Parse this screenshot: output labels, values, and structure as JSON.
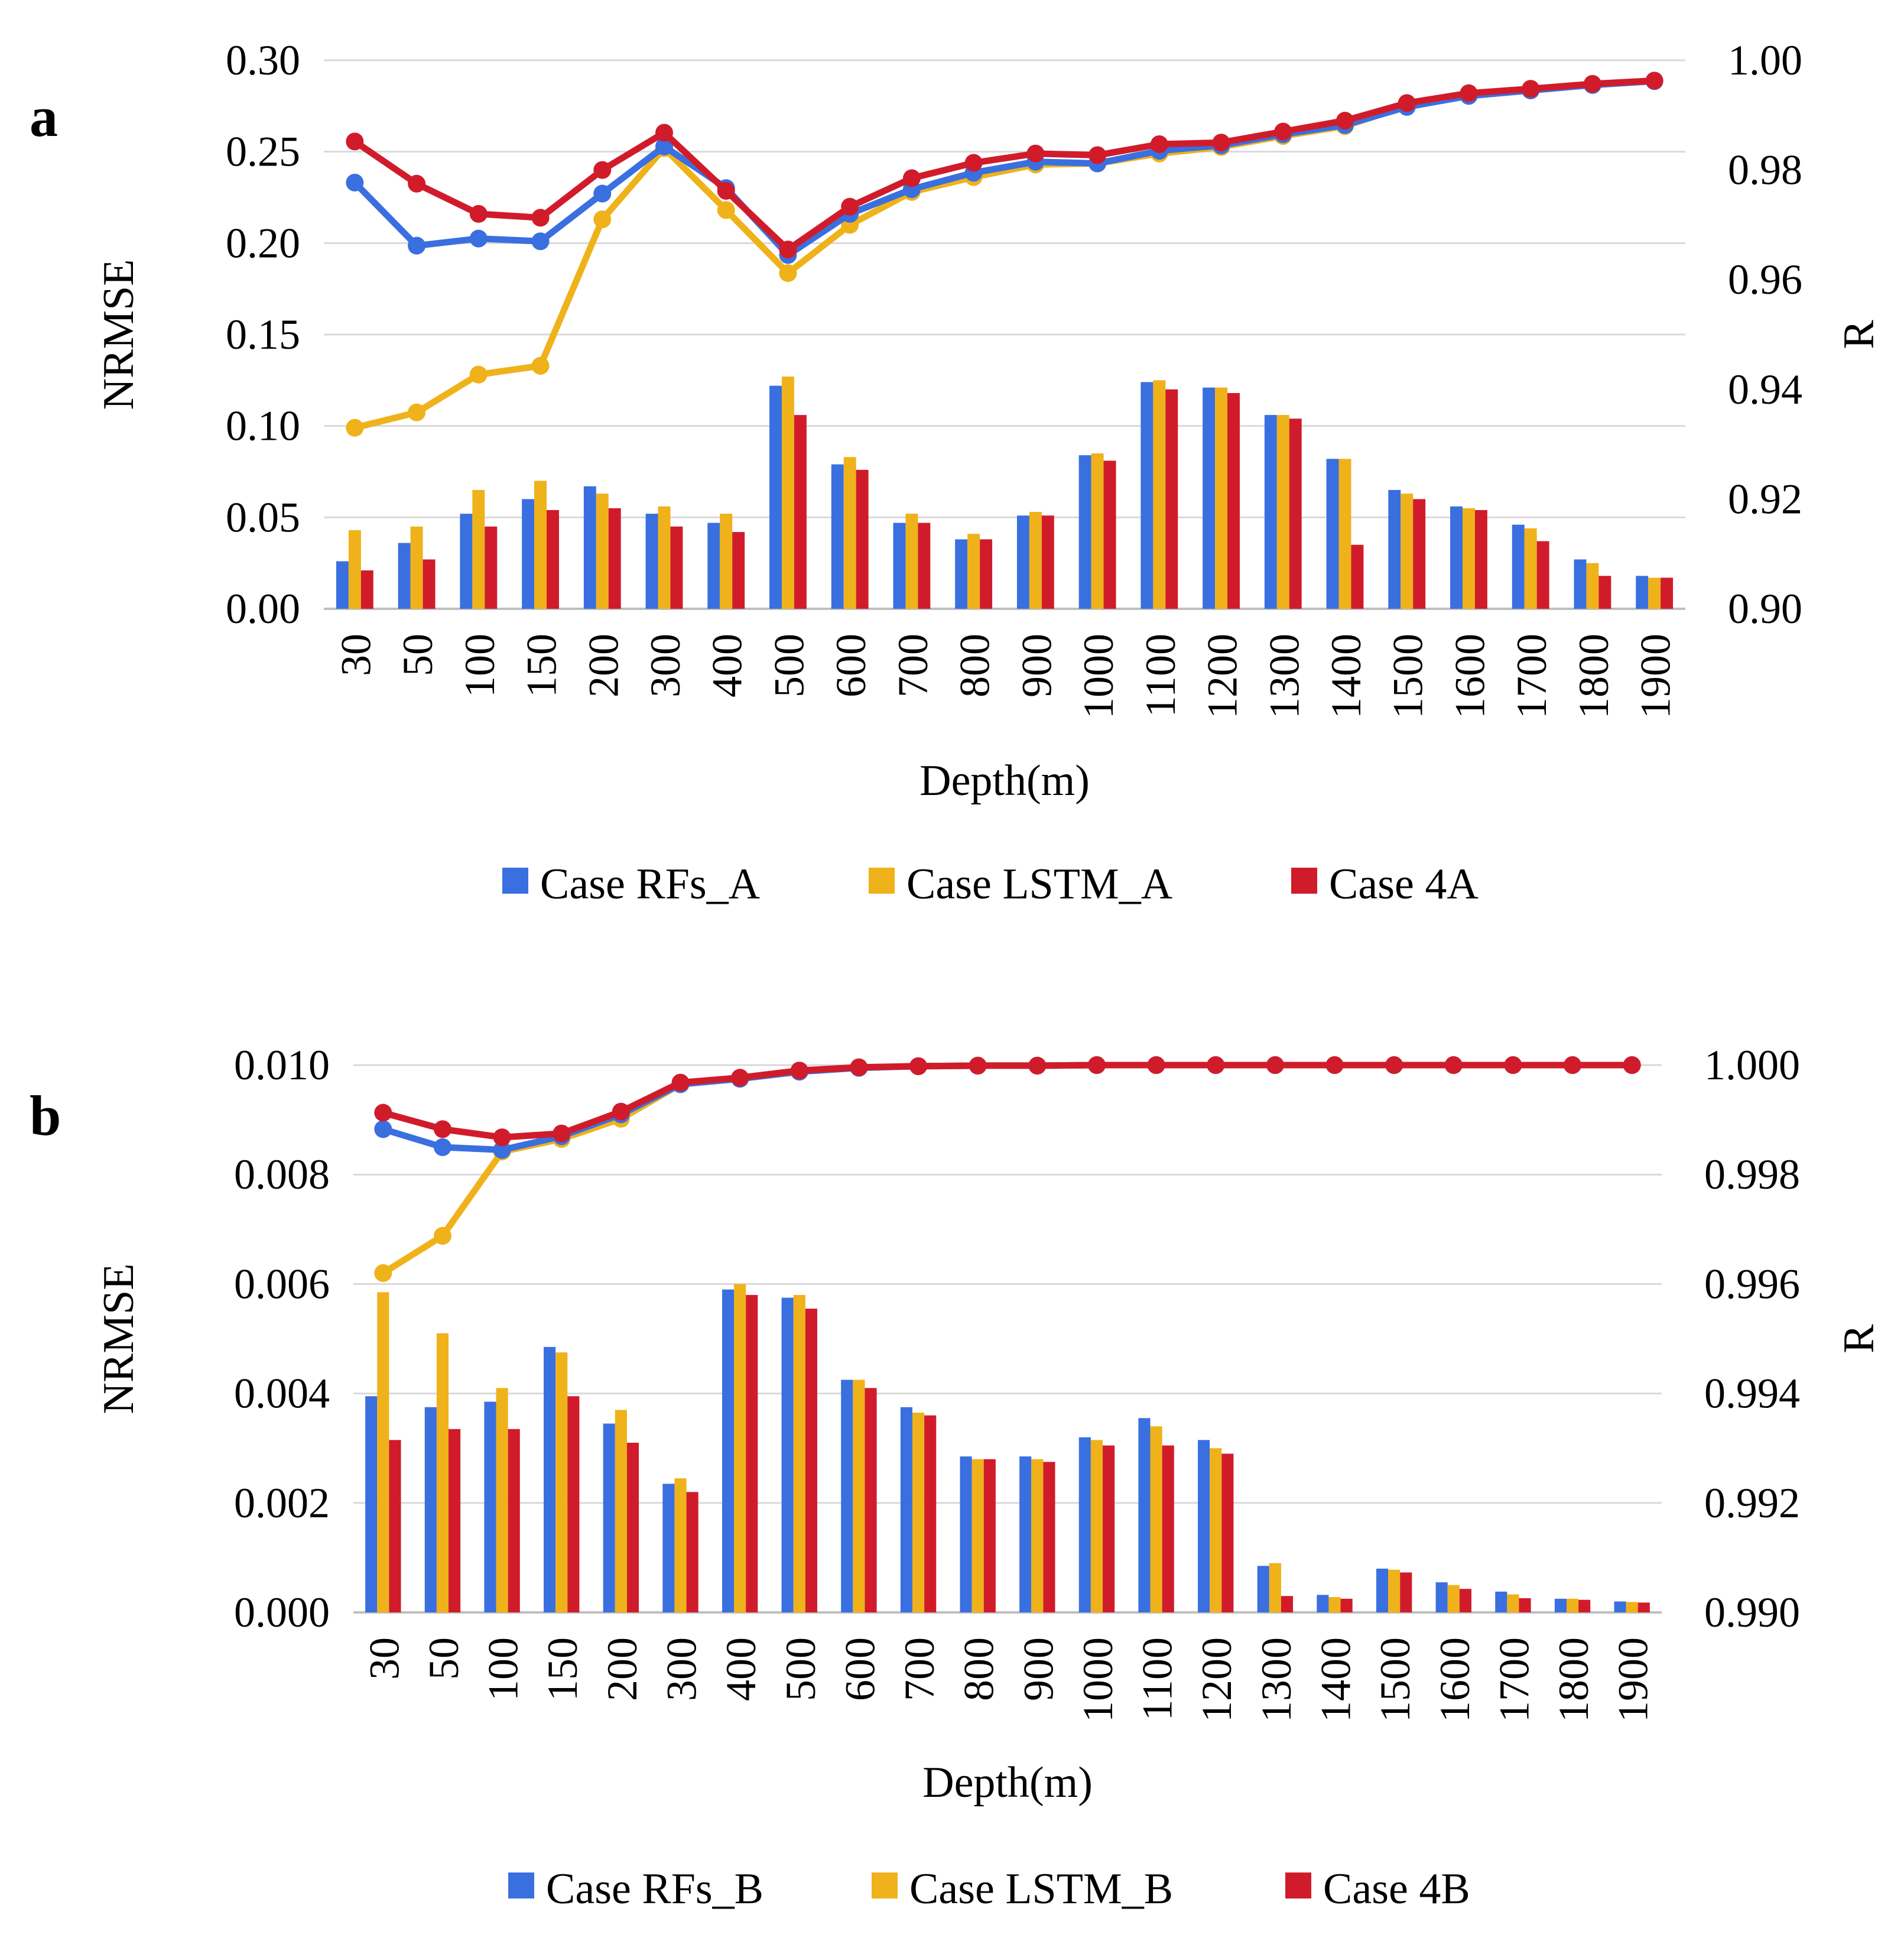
{
  "chart_data": [
    {
      "panel_label": "a",
      "type": "bar",
      "xlabel": "Depth(m)",
      "ylabel": "NRMSE",
      "y2label": "R",
      "ylim": [
        0,
        0.3
      ],
      "y2lim": [
        0.9,
        1.0
      ],
      "yticks": [
        "0.00",
        "0.05",
        "0.10",
        "0.15",
        "0.20",
        "0.25",
        "0.30"
      ],
      "y2ticks": [
        "0.90",
        "0.92",
        "0.94",
        "0.96",
        "0.98",
        "1.00"
      ],
      "grid": true,
      "legend_position": "bottom",
      "categories": [
        "30",
        "50",
        "100",
        "150",
        "200",
        "300",
        "400",
        "500",
        "600",
        "700",
        "800",
        "900",
        "1000",
        "1100",
        "1200",
        "1300",
        "1400",
        "1500",
        "1600",
        "1700",
        "1800",
        "1900"
      ],
      "series": [
        {
          "name": "Case RFs_A",
          "color": "#3a6fe0",
          "values": [
            0.026,
            0.036,
            0.052,
            0.06,
            0.067,
            0.052,
            0.047,
            0.122,
            0.079,
            0.047,
            0.038,
            0.051,
            0.084,
            0.124,
            0.121,
            0.106,
            0.082,
            0.065,
            0.056,
            0.046,
            0.027,
            0.018
          ],
          "r_values": [
            0.9777,
            0.9662,
            0.9675,
            0.967,
            0.9757,
            0.9843,
            0.9767,
            0.9645,
            0.972,
            0.9765,
            0.9795,
            0.9815,
            0.9812,
            0.9835,
            0.9845,
            0.9865,
            0.9882,
            0.9915,
            0.9935,
            0.9945,
            0.9955,
            0.9962
          ]
        },
        {
          "name": "Case LSTM_A",
          "color": "#efb21a",
          "values": [
            0.043,
            0.045,
            0.065,
            0.07,
            0.063,
            0.056,
            0.052,
            0.127,
            0.083,
            0.052,
            0.041,
            0.053,
            0.085,
            0.125,
            0.121,
            0.106,
            0.082,
            0.063,
            0.055,
            0.044,
            0.025,
            0.017
          ],
          "r_values": [
            0.933,
            0.9358,
            0.9427,
            0.9443,
            0.971,
            0.984,
            0.9727,
            0.9612,
            0.97,
            0.976,
            0.9787,
            0.981,
            0.9812,
            0.983,
            0.9842,
            0.9862,
            0.988,
            0.9917,
            0.9937,
            0.9947,
            0.9955,
            0.9962
          ]
        },
        {
          "name": "Case 4A",
          "color": "#d01c2a",
          "values": [
            0.021,
            0.027,
            0.045,
            0.054,
            0.055,
            0.045,
            0.042,
            0.106,
            0.076,
            0.047,
            0.038,
            0.051,
            0.081,
            0.12,
            0.118,
            0.104,
            0.035,
            0.06,
            0.054,
            0.037,
            0.018,
            0.017
          ],
          "r_values": [
            0.9852,
            0.9775,
            0.972,
            0.9713,
            0.98,
            0.9868,
            0.9762,
            0.9655,
            0.9733,
            0.9785,
            0.9813,
            0.983,
            0.9827,
            0.9847,
            0.985,
            0.987,
            0.989,
            0.9922,
            0.994,
            0.9948,
            0.9957,
            0.9963
          ]
        }
      ],
      "legend": [
        "Case RFs_A",
        "Case LSTM_A",
        "Case 4A"
      ]
    },
    {
      "panel_label": "b",
      "type": "bar",
      "xlabel": "Depth(m)",
      "ylabel": "NRMSE",
      "y2label": "R",
      "ylim": [
        0,
        0.01
      ],
      "y2lim": [
        0.99,
        1.0
      ],
      "yticks": [
        "0.000",
        "0.002",
        "0.004",
        "0.006",
        "0.008",
        "0.010"
      ],
      "y2ticks": [
        "0.990",
        "0.992",
        "0.994",
        "0.996",
        "0.998",
        "1.000"
      ],
      "grid": true,
      "legend_position": "bottom",
      "categories": [
        "30",
        "50",
        "100",
        "150",
        "200",
        "300",
        "400",
        "500",
        "600",
        "700",
        "800",
        "900",
        "1000",
        "1100",
        "1200",
        "1300",
        "1400",
        "1500",
        "1600",
        "1700",
        "1800",
        "1900"
      ],
      "series": [
        {
          "name": "Case RFs_B",
          "color": "#3a6fe0",
          "values": [
            0.00395,
            0.00375,
            0.00385,
            0.00485,
            0.00345,
            0.00235,
            0.0059,
            0.00575,
            0.00425,
            0.00375,
            0.00285,
            0.00285,
            0.0032,
            0.00355,
            0.00315,
            0.00085,
            0.00032,
            0.0008,
            0.00055,
            0.00038,
            0.00025,
            0.0002
          ],
          "r_values": [
            0.99883,
            0.9985,
            0.99845,
            0.9987,
            0.9991,
            0.99965,
            0.99975,
            0.99988,
            0.99995,
            0.99998,
            0.99999,
            0.99999,
            1.0,
            1.0,
            1.0,
            1.0,
            1.0,
            1.0,
            1.0,
            1.0,
            1.0,
            1.0
          ]
        },
        {
          "name": "Case LSTM_B",
          "color": "#efb21a",
          "values": [
            0.00585,
            0.0051,
            0.0041,
            0.00475,
            0.0037,
            0.00245,
            0.006,
            0.0058,
            0.00425,
            0.00365,
            0.0028,
            0.0028,
            0.00315,
            0.0034,
            0.003,
            0.0009,
            0.00028,
            0.00078,
            0.0005,
            0.00033,
            0.00025,
            0.00019
          ],
          "r_values": [
            0.9962,
            0.99688,
            0.99842,
            0.99865,
            0.99902,
            0.99965,
            0.99975,
            0.99988,
            0.99995,
            0.99998,
            0.99999,
            0.99999,
            1.0,
            1.0,
            1.0,
            1.0,
            1.0,
            1.0,
            1.0,
            1.0,
            1.0,
            1.0
          ]
        },
        {
          "name": "Case 4B",
          "color": "#d01c2a",
          "values": [
            0.00315,
            0.00335,
            0.00335,
            0.00395,
            0.0031,
            0.0022,
            0.0058,
            0.00555,
            0.0041,
            0.0036,
            0.0028,
            0.00275,
            0.00305,
            0.00305,
            0.0029,
            0.0003,
            0.00025,
            0.00073,
            0.00043,
            0.00026,
            0.00023,
            0.00018
          ],
          "r_values": [
            0.99913,
            0.99883,
            0.99868,
            0.99875,
            0.99915,
            0.99968,
            0.99977,
            0.9999,
            0.99996,
            0.99998,
            0.99999,
            0.99999,
            1.0,
            1.0,
            1.0,
            1.0,
            1.0,
            1.0,
            1.0,
            1.0,
            1.0,
            1.0
          ]
        }
      ],
      "legend": [
        "Case RFs_B",
        "Case LSTM_B",
        "Case 4B"
      ]
    }
  ]
}
